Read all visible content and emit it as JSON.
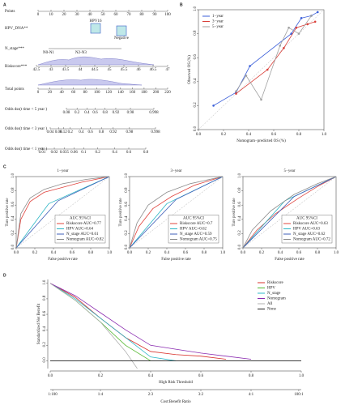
{
  "chart_data": [
    {
      "type": "nomogram",
      "panel": "A",
      "rows": [
        {
          "label": "Points",
          "ticks": [
            0,
            10,
            20,
            30,
            40,
            50,
            60,
            70,
            80,
            90,
            100
          ]
        },
        {
          "label": "HPV_DNA**",
          "levels": [
            "HPV16",
            "Negative"
          ]
        },
        {
          "label": "N_stage***",
          "levels": [
            "N0-N1",
            "N2-N3"
          ]
        },
        {
          "label": "Riskscore***",
          "ticks": [
            42.5,
            43,
            43.5,
            44,
            44.5,
            45,
            45.5,
            46,
            46.5,
            47
          ]
        },
        {
          "label": "Total points",
          "ticks": [
            0,
            20,
            40,
            60,
            80,
            100,
            120,
            140,
            160,
            180,
            200,
            220
          ]
        },
        {
          "label": "Odds dss(t time < 5 year )",
          "scale": "logit",
          "ticks": [
            0.08,
            0.2,
            0.4,
            0.6,
            0.8,
            0.92,
            0.98,
            0.998
          ]
        },
        {
          "label": "Odds dss(t time < 3 year )",
          "scale": "logit",
          "ticks": [
            0.04,
            0.08,
            0.12,
            0.2,
            0.4,
            0.6,
            0.8,
            0.92,
            0.98,
            0.998
          ]
        },
        {
          "label": "Odds dss(t time < 1 year )",
          "scale": "logit",
          "ticks": [
            0.01,
            0.02,
            0.035,
            0.06,
            0.1,
            0.2,
            0.4,
            0.6,
            0.8
          ]
        }
      ]
    },
    {
      "type": "line",
      "panel": "B",
      "xlabel": "Nomogram−predicted OS (%)",
      "ylabel": "Observed OS (%)",
      "xlim": [
        0,
        1
      ],
      "ylim": [
        0,
        1
      ],
      "frame": true,
      "markers": true,
      "legend": "upper left",
      "xticks": [
        {
          "value": 0,
          "label": "0.0"
        },
        {
          "value": 0.2,
          "label": "0.2"
        },
        {
          "value": 0.4,
          "label": "0.4"
        },
        {
          "value": 0.6,
          "label": "0.6"
        },
        {
          "value": 0.8,
          "label": "0.8"
        },
        {
          "value": 1,
          "label": "1.0"
        }
      ],
      "yticks": [
        {
          "value": 0,
          "label": "0.0"
        },
        {
          "value": 0.2,
          "label": "0.2"
        },
        {
          "value": 0.4,
          "label": "0.4"
        },
        {
          "value": 0.6,
          "label": "0.6"
        },
        {
          "value": 0.8,
          "label": "0.8"
        },
        {
          "value": 1,
          "label": "1.0"
        }
      ],
      "series": [
        {
          "name": "1−year",
          "color": "#3b5fd9",
          "x": [
            0.12,
            0.3,
            0.41,
            0.74,
            0.82,
            0.9,
            0.95
          ],
          "values": [
            0.2,
            0.31,
            0.53,
            0.8,
            0.93,
            0.95,
            0.98
          ]
        },
        {
          "name": "3−year",
          "color": "#d9403a",
          "x": [
            0.3,
            0.55,
            0.68,
            0.78,
            0.87,
            0.93
          ],
          "values": [
            0.3,
            0.5,
            0.68,
            0.85,
            0.88,
            0.9
          ]
        },
        {
          "name": "5−year",
          "color": "#a0a0a0",
          "x": [
            0.3,
            0.38,
            0.5,
            0.65,
            0.72,
            0.8,
            0.9
          ],
          "values": [
            0.32,
            0.45,
            0.25,
            0.7,
            0.85,
            0.8,
            0.95
          ]
        }
      ]
    },
    {
      "type": "line",
      "panel": "C",
      "title": "1−year",
      "xlabel": "False positive rate",
      "ylabel": "Ture positive rate",
      "xlim": [
        0,
        1
      ],
      "ylim": [
        0,
        1
      ],
      "frame": true,
      "legend": "lower right",
      "legend_title": "AUC 95%CI",
      "xticks": [
        {
          "value": 0,
          "label": "0.0"
        },
        {
          "value": 0.2,
          "label": "0.2"
        },
        {
          "value": 0.4,
          "label": "0.4"
        },
        {
          "value": 0.6,
          "label": "0.6"
        },
        {
          "value": 0.8,
          "label": "0.8"
        },
        {
          "value": 1,
          "label": "1.0"
        }
      ],
      "yticks": [
        {
          "value": 0,
          "label": "0.0"
        },
        {
          "value": 0.2,
          "label": "0.2"
        },
        {
          "value": 0.4,
          "label": "0.4"
        },
        {
          "value": 0.6,
          "label": "0.6"
        },
        {
          "value": 0.8,
          "label": "0.8"
        },
        {
          "value": 1,
          "label": "1.0"
        }
      ],
      "series": [
        {
          "name": "Riskscore AUC=0.77",
          "color": "#e0443e",
          "x": [
            0,
            0.05,
            0.15,
            0.3,
            0.5,
            0.7,
            1
          ],
          "values": [
            0,
            0.4,
            0.65,
            0.78,
            0.85,
            0.92,
            1
          ]
        },
        {
          "name": "HPV AUC=0.64",
          "color": "#29b5c4",
          "x": [
            0,
            0.35,
            1
          ],
          "values": [
            0,
            0.62,
            1
          ]
        },
        {
          "name": "N_stage AUC=0.61",
          "color": "#3f5fb8",
          "x": [
            0,
            0.45,
            1
          ],
          "values": [
            0,
            0.66,
            1
          ]
        },
        {
          "name": "Nomogram AUC=0.82",
          "color": "#8c8c8c",
          "x": [
            0,
            0.05,
            0.15,
            0.3,
            0.5,
            0.75,
            1
          ],
          "values": [
            0,
            0.48,
            0.7,
            0.82,
            0.9,
            0.96,
            1
          ]
        }
      ]
    },
    {
      "type": "line",
      "title": "3−year",
      "xlabel": "False positive rate",
      "ylabel": "Ture positive rate",
      "xlim": [
        0,
        1
      ],
      "ylim": [
        0,
        1
      ],
      "frame": true,
      "legend": "lower right",
      "legend_title": "AUC 95%CI",
      "xticks": [
        {
          "value": 0,
          "label": "0.0"
        },
        {
          "value": 0.2,
          "label": "0.2"
        },
        {
          "value": 0.4,
          "label": "0.4"
        },
        {
          "value": 0.6,
          "label": "0.6"
        },
        {
          "value": 0.8,
          "label": "0.8"
        },
        {
          "value": 1,
          "label": "1.0"
        }
      ],
      "yticks": [
        {
          "value": 0,
          "label": "0.0"
        },
        {
          "value": 0.2,
          "label": "0.2"
        },
        {
          "value": 0.4,
          "label": "0.4"
        },
        {
          "value": 0.6,
          "label": "0.6"
        },
        {
          "value": 0.8,
          "label": "0.8"
        },
        {
          "value": 1,
          "label": "1.0"
        }
      ],
      "series": [
        {
          "name": "Riskscore AUC=0.7",
          "color": "#e0443e",
          "x": [
            0,
            0.1,
            0.25,
            0.45,
            0.7,
            1
          ],
          "values": [
            0,
            0.3,
            0.55,
            0.72,
            0.88,
            1
          ]
        },
        {
          "name": "HPV AUC=0.62",
          "color": "#29b5c4",
          "x": [
            0,
            0.4,
            1
          ],
          "values": [
            0,
            0.62,
            1
          ]
        },
        {
          "name": "N_stage AUC=0.59",
          "color": "#3f5fb8",
          "x": [
            0,
            0.5,
            1
          ],
          "values": [
            0,
            0.68,
            1
          ]
        },
        {
          "name": "Nomogram AUC=0.75",
          "color": "#8c8c8c",
          "x": [
            0,
            0.08,
            0.2,
            0.4,
            0.65,
            1
          ],
          "values": [
            0,
            0.35,
            0.6,
            0.78,
            0.9,
            1
          ]
        }
      ]
    },
    {
      "type": "line",
      "title": "5−year",
      "xlabel": "False positive rate",
      "ylabel": "Ture positive rate",
      "xlim": [
        0,
        1
      ],
      "ylim": [
        0,
        1
      ],
      "frame": true,
      "legend": "lower right",
      "legend_title": "AUC 95%CI",
      "xticks": [
        {
          "value": 0,
          "label": "0.0"
        },
        {
          "value": 0.2,
          "label": "0.2"
        },
        {
          "value": 0.4,
          "label": "0.4"
        },
        {
          "value": 0.6,
          "label": "0.6"
        },
        {
          "value": 0.8,
          "label": "0.8"
        },
        {
          "value": 1,
          "label": "1.0"
        }
      ],
      "yticks": [
        {
          "value": 0,
          "label": "0.0"
        },
        {
          "value": 0.2,
          "label": "0.2"
        },
        {
          "value": 0.4,
          "label": "0.4"
        },
        {
          "value": 0.6,
          "label": "0.6"
        },
        {
          "value": 0.8,
          "label": "0.8"
        },
        {
          "value": 1,
          "label": "1.0"
        }
      ],
      "series": [
        {
          "name": "Riskscore AUC=0.63",
          "color": "#e0443e",
          "x": [
            0,
            0.15,
            0.35,
            0.6,
            0.8,
            1
          ],
          "values": [
            0,
            0.25,
            0.48,
            0.7,
            0.86,
            1
          ]
        },
        {
          "name": "HPV AUC=0.63",
          "color": "#29b5c4",
          "x": [
            0,
            0.45,
            1
          ],
          "values": [
            0,
            0.66,
            1
          ]
        },
        {
          "name": "N_stage AUC=0.62",
          "color": "#3f5fb8",
          "x": [
            0,
            0.55,
            1
          ],
          "values": [
            0,
            0.72,
            1
          ]
        },
        {
          "name": "Nomogram AUC=0.72",
          "color": "#8c8c8c",
          "x": [
            0,
            0.1,
            0.3,
            0.55,
            0.8,
            1
          ],
          "values": [
            0,
            0.25,
            0.52,
            0.75,
            0.9,
            1
          ]
        }
      ]
    },
    {
      "type": "line",
      "panel": "D",
      "xlabel": "High Risk Threshold",
      "ylabel": "Standardized Net Benefit",
      "x2label": "Cost:Benefit Ratio",
      "xlim": [
        0,
        1
      ],
      "ylim": [
        -0.1,
        1.05
      ],
      "frame": false,
      "legend": "upper right",
      "xticks": [
        {
          "value": 0,
          "label": "0.0"
        },
        {
          "value": 0.2,
          "label": "0.2"
        },
        {
          "value": 0.4,
          "label": "0.4"
        },
        {
          "value": 0.6,
          "label": "0.6"
        },
        {
          "value": 0.8,
          "label": "0.8"
        },
        {
          "value": 1,
          "label": "1.0"
        }
      ],
      "x2ticks": [
        {
          "value": 0.01,
          "label": "1:100"
        },
        {
          "value": 0.2,
          "label": "1:4"
        },
        {
          "value": 0.4,
          "label": "2:3"
        },
        {
          "value": 0.6,
          "label": "3:2"
        },
        {
          "value": 0.8,
          "label": "4:1"
        },
        {
          "value": 0.99,
          "label": "100:1"
        }
      ],
      "yticks": [
        {
          "value": 0,
          "label": "0.0"
        },
        {
          "value": 0.2,
          "label": "0.2"
        },
        {
          "value": 0.4,
          "label": "0.4"
        },
        {
          "value": 0.6,
          "label": "0.6"
        },
        {
          "value": 0.8,
          "label": "0.8"
        },
        {
          "value": 1,
          "label": "1.0"
        }
      ],
      "x": [
        0,
        0.1,
        0.2,
        0.3,
        0.4,
        0.5,
        0.6,
        0.7,
        0.8,
        0.9,
        1
      ],
      "series": [
        {
          "name": "Riskscore",
          "color": "#d8312b",
          "values": [
            1,
            0.82,
            0.55,
            0.3,
            0.12,
            0.08,
            0.06,
            0.02,
            null,
            null,
            null
          ]
        },
        {
          "name": "HPV",
          "color": "#52b82e",
          "values": [
            1,
            0.78,
            0.5,
            0.2,
            0,
            null,
            null,
            null,
            null,
            null,
            null
          ]
        },
        {
          "name": "N_stage",
          "color": "#2cb8c8",
          "values": [
            1,
            0.8,
            0.55,
            0.3,
            0.05,
            0,
            null,
            null,
            null,
            null,
            null
          ]
        },
        {
          "name": "Nomogram",
          "color": "#8a2bb0",
          "values": [
            1,
            0.84,
            0.62,
            0.4,
            0.2,
            0.15,
            0.1,
            0.06,
            0.02,
            null,
            null
          ]
        },
        {
          "name": "All",
          "color": "#b0b0b0",
          "values": [
            1,
            0.78,
            0.5,
            0.12,
            -0.35,
            null,
            null,
            null,
            null,
            null,
            null
          ]
        },
        {
          "name": "None",
          "color": "#222222",
          "values": [
            0,
            0,
            0,
            0,
            0,
            0,
            0,
            0,
            0,
            0,
            0
          ]
        }
      ]
    }
  ]
}
